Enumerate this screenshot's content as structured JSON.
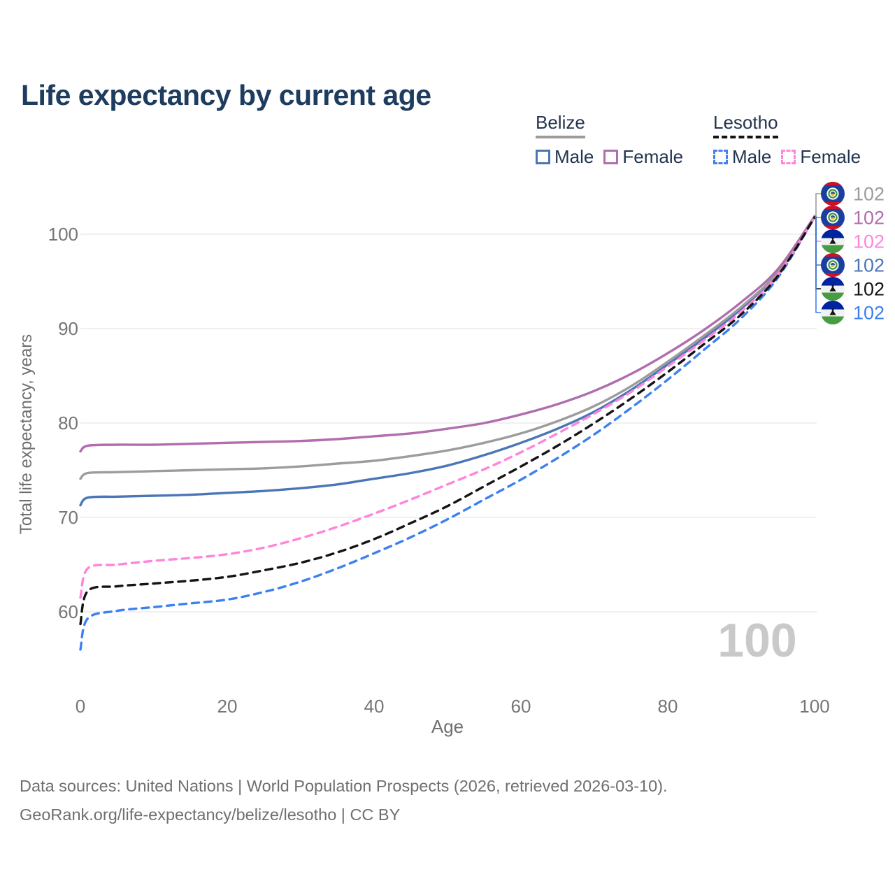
{
  "title": "Life expectancy by current age",
  "watermark": "100",
  "legend": {
    "position": "top-right",
    "groups": [
      {
        "country": "Belize",
        "underline_color": "#9c9c9c",
        "underline_style": "solid",
        "items": [
          {
            "label": "Male",
            "color": "#4a76b7",
            "dashed": false
          },
          {
            "label": "Female",
            "color": "#b16dae",
            "dashed": false
          }
        ]
      },
      {
        "country": "Lesotho",
        "underline_color": "#141414",
        "underline_style": "dashed",
        "items": [
          {
            "label": "Male",
            "color": "#3d80f0",
            "dashed": true
          },
          {
            "label": "Female",
            "color": "#ff84db",
            "dashed": true
          }
        ]
      }
    ]
  },
  "footer": {
    "line1": "Data sources: United Nations | World Population Prospects (2026, retrieved 2026-03-10).",
    "line2": "GeoRank.org/life-expectancy/belize/lesotho | CC BY"
  },
  "chart_data": {
    "type": "line",
    "title": "Life expectancy by current age",
    "xlabel": "Age",
    "ylabel": "Total life expectancy, years",
    "xlim": [
      0,
      100
    ],
    "ylim": [
      54,
      104
    ],
    "xticks": [
      0,
      20,
      40,
      60,
      80,
      100
    ],
    "yticks": [
      60,
      70,
      80,
      90,
      100
    ],
    "grid": "horizontal-only",
    "gridline_color": "#ececec",
    "age_cursor": "100",
    "x": [
      0,
      1,
      5,
      10,
      15,
      20,
      25,
      30,
      35,
      40,
      45,
      50,
      55,
      60,
      65,
      70,
      75,
      80,
      85,
      90,
      95,
      100
    ],
    "series": [
      {
        "id": "belize-male",
        "name": "Belize Male",
        "country": "Belize",
        "color": "#4a76b7",
        "dashed": false,
        "values": [
          71.3,
          72.1,
          72.2,
          72.3,
          72.4,
          72.6,
          72.8,
          73.1,
          73.5,
          74.1,
          74.7,
          75.5,
          76.6,
          77.9,
          79.4,
          81.2,
          83.5,
          86.2,
          89.0,
          92.1,
          95.9,
          101.8
        ]
      },
      {
        "id": "belize",
        "name": "Belize",
        "country": "Belize",
        "color": "#9c9c9c",
        "dashed": false,
        "values": [
          74.1,
          74.7,
          74.8,
          74.9,
          75.0,
          75.1,
          75.2,
          75.4,
          75.7,
          76.0,
          76.5,
          77.1,
          77.9,
          78.9,
          80.2,
          81.8,
          83.9,
          86.5,
          89.3,
          92.3,
          96.0,
          101.9
        ]
      },
      {
        "id": "belize-female",
        "name": "Belize Female",
        "country": "Belize",
        "color": "#b16dae",
        "dashed": false,
        "values": [
          77.0,
          77.6,
          77.7,
          77.7,
          77.8,
          77.9,
          78.0,
          78.1,
          78.3,
          78.6,
          78.9,
          79.4,
          80.0,
          80.9,
          82.0,
          83.4,
          85.2,
          87.4,
          89.9,
          92.8,
          96.3,
          101.9
        ]
      },
      {
        "id": "lesotho-male",
        "name": "Lesotho Male",
        "country": "Lesotho",
        "color": "#3d80f0",
        "dashed": true,
        "values": [
          56.0,
          59.3,
          60.1,
          60.5,
          60.9,
          61.3,
          62.1,
          63.2,
          64.6,
          66.2,
          67.9,
          69.8,
          71.9,
          74.0,
          76.3,
          78.8,
          81.6,
          84.6,
          87.8,
          91.1,
          95.4,
          101.8
        ]
      },
      {
        "id": "lesotho-female",
        "name": "Lesotho Female",
        "country": "Lesotho",
        "color": "#ff84db",
        "dashed": true,
        "values": [
          61.5,
          64.6,
          65.0,
          65.4,
          65.7,
          66.1,
          66.8,
          67.8,
          69.0,
          70.4,
          71.9,
          73.5,
          75.1,
          76.9,
          78.9,
          81.0,
          83.3,
          86.0,
          88.8,
          91.8,
          95.7,
          101.8
        ]
      },
      {
        "id": "lesotho",
        "name": "Lesotho",
        "country": "Lesotho",
        "color": "#141414",
        "dashed": true,
        "values": [
          58.7,
          62.2,
          62.7,
          63.0,
          63.3,
          63.7,
          64.4,
          65.2,
          66.3,
          67.7,
          69.4,
          71.2,
          73.3,
          75.4,
          77.6,
          80.0,
          82.6,
          85.4,
          88.4,
          91.5,
          95.6,
          101.8
        ]
      }
    ],
    "end_labels": {
      "order": [
        "belize",
        "belize-female",
        "lesotho-female",
        "belize-male",
        "lesotho",
        "lesotho-male"
      ],
      "value": "102",
      "flags": {
        "belize": "belize-flag-icon",
        "belize-female": "belize-flag-icon",
        "belize-male": "belize-flag-icon",
        "lesotho": "lesotho-flag-icon",
        "lesotho-female": "lesotho-flag-icon",
        "lesotho-male": "lesotho-flag-icon"
      }
    },
    "flag_colors": {
      "belize": {
        "blue": "#1b3f9f",
        "red": "#cf1127",
        "green_ring": "#3e9a3e",
        "yellow": "#e8b71e",
        "emblem_blue": "#2b56a8"
      },
      "lesotho": {
        "blue": "#0023a0",
        "white": "#f2f2f2",
        "green": "#469c43",
        "hat": "#141414"
      }
    }
  }
}
